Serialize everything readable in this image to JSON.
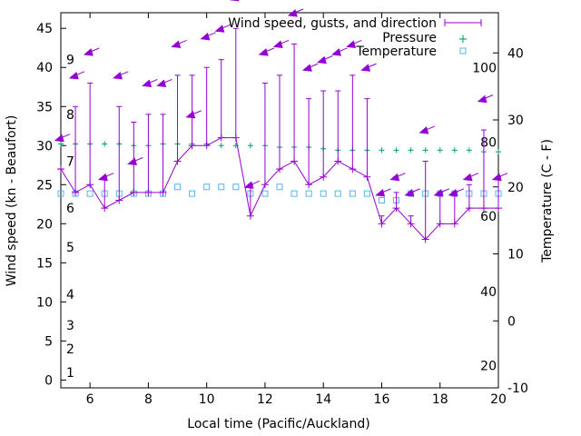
{
  "chart_data": {
    "type": "line",
    "xlabel": "Local time (Pacific/Auckland)",
    "ylabel": "Wind speed (kn - Beaufort)",
    "y2label": "Temperature (C - F)",
    "xlim": [
      5,
      20
    ],
    "ylim": [
      -1,
      47
    ],
    "y2lim": [
      -10,
      46
    ],
    "grid": false,
    "legend_position": "top-right",
    "x_ticks": [
      "6",
      "8",
      "10",
      "12",
      "14",
      "16",
      "18",
      "20"
    ],
    "y_ticks": [
      "0",
      "5",
      "10",
      "15",
      "20",
      "25",
      "30",
      "35",
      "40",
      "45"
    ],
    "y2_ticks": [
      "-10",
      "0",
      "10",
      "20",
      "30",
      "40"
    ],
    "beaufort_labels": [
      {
        "y": 1,
        "text": "1"
      },
      {
        "y": 4,
        "text": "2"
      },
      {
        "y": 7,
        "text": "3"
      },
      {
        "y": 11,
        "text": "4"
      },
      {
        "y": 17,
        "text": "5"
      },
      {
        "y": 22,
        "text": "6"
      },
      {
        "y": 28,
        "text": "7"
      },
      {
        "y": 34,
        "text": "8"
      },
      {
        "y": 41,
        "text": "9"
      }
    ],
    "fahrenheit_labels": [
      {
        "c": -6.7,
        "text": "20"
      },
      {
        "c": 4.4,
        "text": "40"
      },
      {
        "c": 15.6,
        "text": "60"
      },
      {
        "c": 26.7,
        "text": "80"
      },
      {
        "c": 37.8,
        "text": "100"
      }
    ],
    "series": [
      {
        "name": "Wind speed, gusts, and direction",
        "color": "#9400d3",
        "x": [
          5,
          5.5,
          6,
          6.5,
          7,
          7.5,
          8,
          8.5,
          9,
          9.5,
          10,
          10.5,
          11,
          11.5,
          12,
          12.5,
          13,
          13.5,
          14,
          14.5,
          15,
          15.5,
          16,
          16.5,
          17,
          17.5,
          18,
          18.5,
          19,
          19.5,
          20
        ],
        "values": [
          27,
          24,
          25,
          22,
          23,
          24,
          24,
          24,
          28,
          30,
          30,
          31,
          31,
          21,
          25,
          27,
          28,
          25,
          26,
          28,
          27,
          26,
          20,
          22,
          20,
          18,
          20,
          20,
          22,
          22,
          22
        ],
        "gusts": [
          27,
          35,
          38,
          26,
          35,
          33,
          34,
          34,
          39,
          39,
          40,
          41,
          45,
          25,
          38,
          39,
          43,
          36,
          37,
          37,
          39,
          36,
          21,
          24,
          21,
          28,
          24,
          24,
          25,
          32,
          26
        ],
        "direction_arrows": [
          {
            "x": 5,
            "y": 31
          },
          {
            "x": 5.5,
            "y": 39
          },
          {
            "x": 6,
            "y": 42
          },
          {
            "x": 6.5,
            "y": 26
          },
          {
            "x": 7,
            "y": 39
          },
          {
            "x": 7.5,
            "y": 28
          },
          {
            "x": 8,
            "y": 38
          },
          {
            "x": 8.5,
            "y": 38
          },
          {
            "x": 9,
            "y": 43
          },
          {
            "x": 9.5,
            "y": 34
          },
          {
            "x": 10,
            "y": 44
          },
          {
            "x": 10.5,
            "y": 45
          },
          {
            "x": 11,
            "y": 49
          },
          {
            "x": 11.5,
            "y": 25
          },
          {
            "x": 12,
            "y": 42
          },
          {
            "x": 12.5,
            "y": 43
          },
          {
            "x": 13,
            "y": 47
          },
          {
            "x": 13.5,
            "y": 40
          },
          {
            "x": 14,
            "y": 41
          },
          {
            "x": 14.5,
            "y": 42
          },
          {
            "x": 15,
            "y": 43
          },
          {
            "x": 15.5,
            "y": 40
          },
          {
            "x": 16,
            "y": 24
          },
          {
            "x": 16.5,
            "y": 26
          },
          {
            "x": 17,
            "y": 24
          },
          {
            "x": 17.5,
            "y": 32
          },
          {
            "x": 18,
            "y": 24
          },
          {
            "x": 18.5,
            "y": 24
          },
          {
            "x": 19,
            "y": 26
          },
          {
            "x": 19.5,
            "y": 36
          },
          {
            "x": 20,
            "y": 26
          }
        ]
      },
      {
        "name": "Pressure",
        "color": "#009e73",
        "x": [
          5,
          5.5,
          6,
          6.5,
          7,
          7.5,
          8,
          8.5,
          9,
          9.5,
          10,
          10.5,
          11,
          11.5,
          12,
          12.5,
          13,
          13.5,
          14,
          14.5,
          15,
          15.5,
          16,
          16.5,
          17,
          17.5,
          18,
          18.5,
          19,
          19.5,
          20
        ],
        "values": [
          30.2,
          30.2,
          30.2,
          30.2,
          30.2,
          30.0,
          30.0,
          30.2,
          30.2,
          30.2,
          30.2,
          30.0,
          30.0,
          30.0,
          30.0,
          29.8,
          29.8,
          29.8,
          29.6,
          29.4,
          29.4,
          29.4,
          29.4,
          29.4,
          29.4,
          29.4,
          29.4,
          29.4,
          29.4,
          29.2,
          29.2
        ]
      },
      {
        "name": "Temperature",
        "color": "#56b4e9",
        "x": [
          5,
          5.5,
          6,
          6.5,
          7,
          7.5,
          8,
          8.5,
          9,
          9.5,
          10,
          10.5,
          11,
          11.5,
          12,
          12.5,
          13,
          13.5,
          14,
          14.5,
          15,
          15.5,
          16,
          16.5,
          17,
          17.5,
          18,
          18.5,
          19,
          19.5,
          20
        ],
        "values": [
          19,
          19,
          19,
          19,
          19,
          19,
          19,
          19,
          20,
          19,
          20,
          20,
          20,
          19,
          19,
          20,
          19,
          19,
          19,
          19,
          19,
          19,
          18,
          18,
          19,
          19,
          19,
          19,
          19,
          19,
          19
        ]
      }
    ]
  }
}
